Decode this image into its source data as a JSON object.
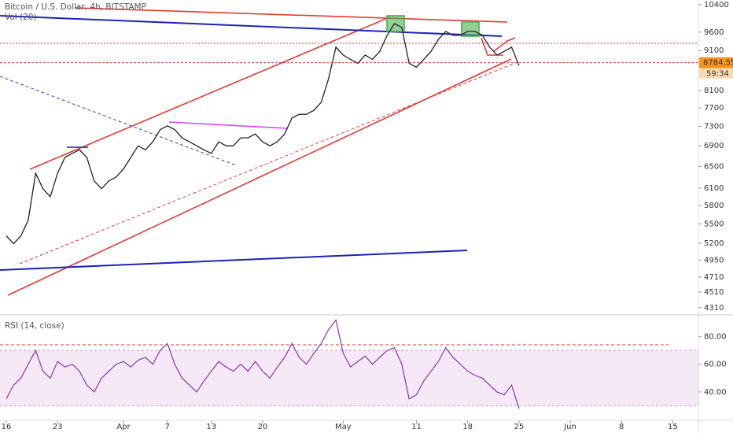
{
  "chart_data": [
    {
      "type": "line",
      "title": "Bitcoin / U.S. Dollar, 4h, BITSTAMP",
      "indicator_label": "Vol (20)",
      "log_scale": true,
      "grid": false,
      "xlim": [
        -0.86,
        94.5
      ],
      "ylim": [
        4240,
        10540
      ],
      "yticks": [
        10400,
        9600,
        9100,
        8100,
        7700,
        7300,
        6900,
        6500,
        6100,
        5800,
        5500,
        5200,
        4950,
        4710,
        4510,
        4310
      ],
      "x": [
        0,
        1,
        2,
        3,
        4,
        5,
        6,
        7,
        8,
        9,
        10,
        11,
        12,
        13,
        14,
        15,
        16,
        17,
        18,
        19,
        20,
        21,
        22,
        23,
        24,
        25,
        26,
        27,
        28,
        29,
        30,
        31,
        32,
        33,
        34,
        35,
        36,
        37,
        38,
        39,
        40,
        41,
        42,
        43,
        44,
        45,
        46,
        47,
        48,
        49,
        50,
        51,
        52,
        53,
        54,
        55,
        56,
        57,
        58,
        59,
        60,
        61,
        62,
        63,
        64,
        65,
        66,
        67,
        68,
        69,
        70
      ],
      "series": [
        {
          "name": "BTCUSD",
          "color": "#222222",
          "values": [
            5310,
            5190,
            5310,
            5560,
            6370,
            6090,
            5950,
            6370,
            6670,
            6750,
            6820,
            6670,
            6230,
            6090,
            6230,
            6300,
            6450,
            6670,
            6900,
            6820,
            6980,
            7230,
            7310,
            7230,
            7060,
            6980,
            6900,
            6820,
            6750,
            6980,
            6900,
            6900,
            7060,
            7060,
            7140,
            6980,
            6900,
            6980,
            7140,
            7480,
            7560,
            7560,
            7650,
            7830,
            8380,
            9190,
            8980,
            8870,
            8770,
            8980,
            8870,
            9080,
            9510,
            9840,
            9730,
            8770,
            8670,
            8870,
            9080,
            9400,
            9620,
            9510,
            9510,
            9620,
            9620,
            9510,
            9190,
            8980,
            9080,
            9190,
            8710
          ]
        }
      ],
      "last_price": 8784.55,
      "last_price_color": "#f7941d",
      "countdown": "59:34"
    },
    {
      "type": "line",
      "title": "RSI (14, close)",
      "xlim": [
        -0.86,
        94.5
      ],
      "ylim": [
        20,
        94
      ],
      "yticks": [
        {
          "value": 80,
          "label": "80.00"
        },
        {
          "value": 60,
          "label": "60.00"
        },
        {
          "value": 40,
          "label": "40.00"
        }
      ],
      "band": [
        30,
        70
      ],
      "band_color": "#9c27b0",
      "xticks": [
        {
          "value": 0,
          "label": "16"
        },
        {
          "value": 7,
          "label": "23"
        },
        {
          "value": 16,
          "label": "Apr"
        },
        {
          "value": 22,
          "label": "7"
        },
        {
          "value": 28,
          "label": "13"
        },
        {
          "value": 35,
          "label": "20"
        },
        {
          "value": 46,
          "label": "May"
        },
        {
          "value": 56,
          "label": "11"
        },
        {
          "value": 63,
          "label": "18"
        },
        {
          "value": 70,
          "label": "25"
        },
        {
          "value": 77,
          "label": "Jun"
        },
        {
          "value": 84,
          "label": "8"
        },
        {
          "value": 91,
          "label": "15"
        }
      ],
      "x": [
        0,
        1,
        2,
        3,
        4,
        5,
        6,
        7,
        8,
        9,
        10,
        11,
        12,
        13,
        14,
        15,
        16,
        17,
        18,
        19,
        20,
        21,
        22,
        23,
        24,
        25,
        26,
        27,
        28,
        29,
        30,
        31,
        32,
        33,
        34,
        35,
        36,
        37,
        38,
        39,
        40,
        41,
        42,
        43,
        44,
        45,
        46,
        47,
        48,
        49,
        50,
        51,
        52,
        53,
        54,
        55,
        56,
        57,
        58,
        59,
        60,
        61,
        62,
        63,
        64,
        65,
        66,
        67,
        68,
        69,
        70
      ],
      "series": [
        {
          "name": "RSI",
          "color": "#8e44ad",
          "values": [
            35,
            45,
            50,
            60,
            70,
            55,
            50,
            62,
            58,
            60,
            55,
            45,
            40,
            50,
            55,
            60,
            62,
            58,
            63,
            65,
            60,
            70,
            75,
            60,
            50,
            45,
            40,
            48,
            55,
            62,
            58,
            55,
            60,
            55,
            62,
            55,
            50,
            58,
            65,
            75,
            65,
            60,
            68,
            75,
            85,
            92,
            68,
            58,
            62,
            66,
            60,
            65,
            70,
            72,
            60,
            35,
            38,
            48,
            55,
            62,
            72,
            65,
            60,
            55,
            52,
            50,
            45,
            40,
            38,
            45,
            28
          ]
        }
      ]
    }
  ]
}
